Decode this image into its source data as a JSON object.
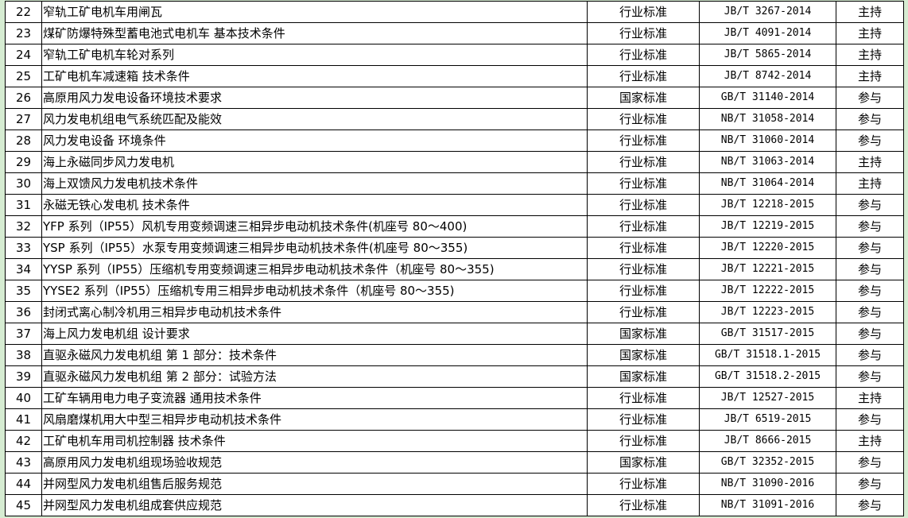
{
  "rows": [
    {
      "no": "22",
      "name": "窄轨工矿电机车用闸瓦",
      "type": "行业标准",
      "code": "JB/T 3267-2014",
      "role": "主持"
    },
    {
      "no": "23",
      "name": "煤矿防爆特殊型蓄电池式电机车 基本技术条件",
      "type": "行业标准",
      "code": "JB/T 4091-2014",
      "role": "主持"
    },
    {
      "no": "24",
      "name": "窄轨工矿电机车轮对系列",
      "type": "行业标准",
      "code": "JB/T 5865-2014",
      "role": "主持"
    },
    {
      "no": "25",
      "name": "工矿电机车减速箱 技术条件",
      "type": "行业标准",
      "code": "JB/T 8742-2014",
      "role": "主持"
    },
    {
      "no": "26",
      "name": "高原用风力发电设备环境技术要求",
      "type": "国家标准",
      "code": "GB/T 31140-2014",
      "role": "参与"
    },
    {
      "no": "27",
      "name": "风力发电机组电气系统匹配及能效",
      "type": "行业标准",
      "code": "NB/T 31058-2014",
      "role": "参与"
    },
    {
      "no": "28",
      "name": "风力发电设备 环境条件",
      "type": "行业标准",
      "code": "NB/T 31060-2014",
      "role": "参与"
    },
    {
      "no": "29",
      "name": "海上永磁同步风力发电机",
      "type": "行业标准",
      "code": "NB/T 31063-2014",
      "role": "主持"
    },
    {
      "no": "30",
      "name": "海上双馈风力发电机技术条件",
      "type": "行业标准",
      "code": "NB/T 31064-2014",
      "role": "主持"
    },
    {
      "no": "31",
      "name": "永磁无铁心发电机 技术条件",
      "type": "行业标准",
      "code": "JB/T 12218-2015",
      "role": "参与"
    },
    {
      "no": "32",
      "name": "YFP 系列（IP55）风机专用变频调速三相异步电动机技术条件(机座号 80～400)",
      "type": "行业标准",
      "code": "JB/T 12219-2015",
      "role": "参与"
    },
    {
      "no": "33",
      "name": "YSP 系列（IP55）水泵专用变频调速三相异步电动机技术条件(机座号 80～355)",
      "type": "行业标准",
      "code": "JB/T 12220-2015",
      "role": "参与"
    },
    {
      "no": "34",
      "name": "YYSP 系列（IP55）压缩机专用变频调速三相异步电动机技术条件（机座号 80～355)",
      "type": "行业标准",
      "code": "JB/T 12221-2015",
      "role": "参与"
    },
    {
      "no": "35",
      "name": "YYSE2 系列（IP55）压缩机专用三相异步电动机技术条件（机座号 80～355)",
      "type": "行业标准",
      "code": "JB/T 12222-2015",
      "role": "参与"
    },
    {
      "no": "36",
      "name": "封闭式离心制冷机用三相异步电动机技术条件",
      "type": "行业标准",
      "code": "JB/T 12223-2015",
      "role": "参与"
    },
    {
      "no": "37",
      "name": "海上风力发电机组 设计要求",
      "type": "国家标准",
      "code": "GB/T 31517-2015",
      "role": "参与"
    },
    {
      "no": "38",
      "name": "直驱永磁风力发电机组 第 1 部分：技术条件",
      "type": "国家标准",
      "code": "GB/T 31518.1-2015",
      "role": "参与"
    },
    {
      "no": "39",
      "name": "直驱永磁风力发电机组 第 2 部分：试验方法",
      "type": "国家标准",
      "code": "GB/T 31518.2-2015",
      "role": "参与"
    },
    {
      "no": "40",
      "name": "工矿车辆用电力电子变流器  通用技术条件",
      "type": "行业标准",
      "code": "JB/T 12527-2015",
      "role": "主持"
    },
    {
      "no": "41",
      "name": "风扇磨煤机用大中型三相异步电动机技术条件",
      "type": "行业标准",
      "code": "JB/T 6519-2015",
      "role": "参与"
    },
    {
      "no": "42",
      "name": "工矿电机车用司机控制器 技术条件",
      "type": "行业标准",
      "code": "JB/T 8666-2015",
      "role": "主持"
    },
    {
      "no": "43",
      "name": "高原用风力发电机组现场验收规范",
      "type": "国家标准",
      "code": "GB/T 32352-2015",
      "role": "参与"
    },
    {
      "no": "44",
      "name": "并网型风力发电机组售后服务规范",
      "type": "行业标准",
      "code": "NB/T 31090-2016",
      "role": "参与"
    },
    {
      "no": "45",
      "name": "并网型风力发电机组成套供应规范",
      "type": "行业标准",
      "code": "NB/T 31091-2016",
      "role": "参与"
    }
  ]
}
